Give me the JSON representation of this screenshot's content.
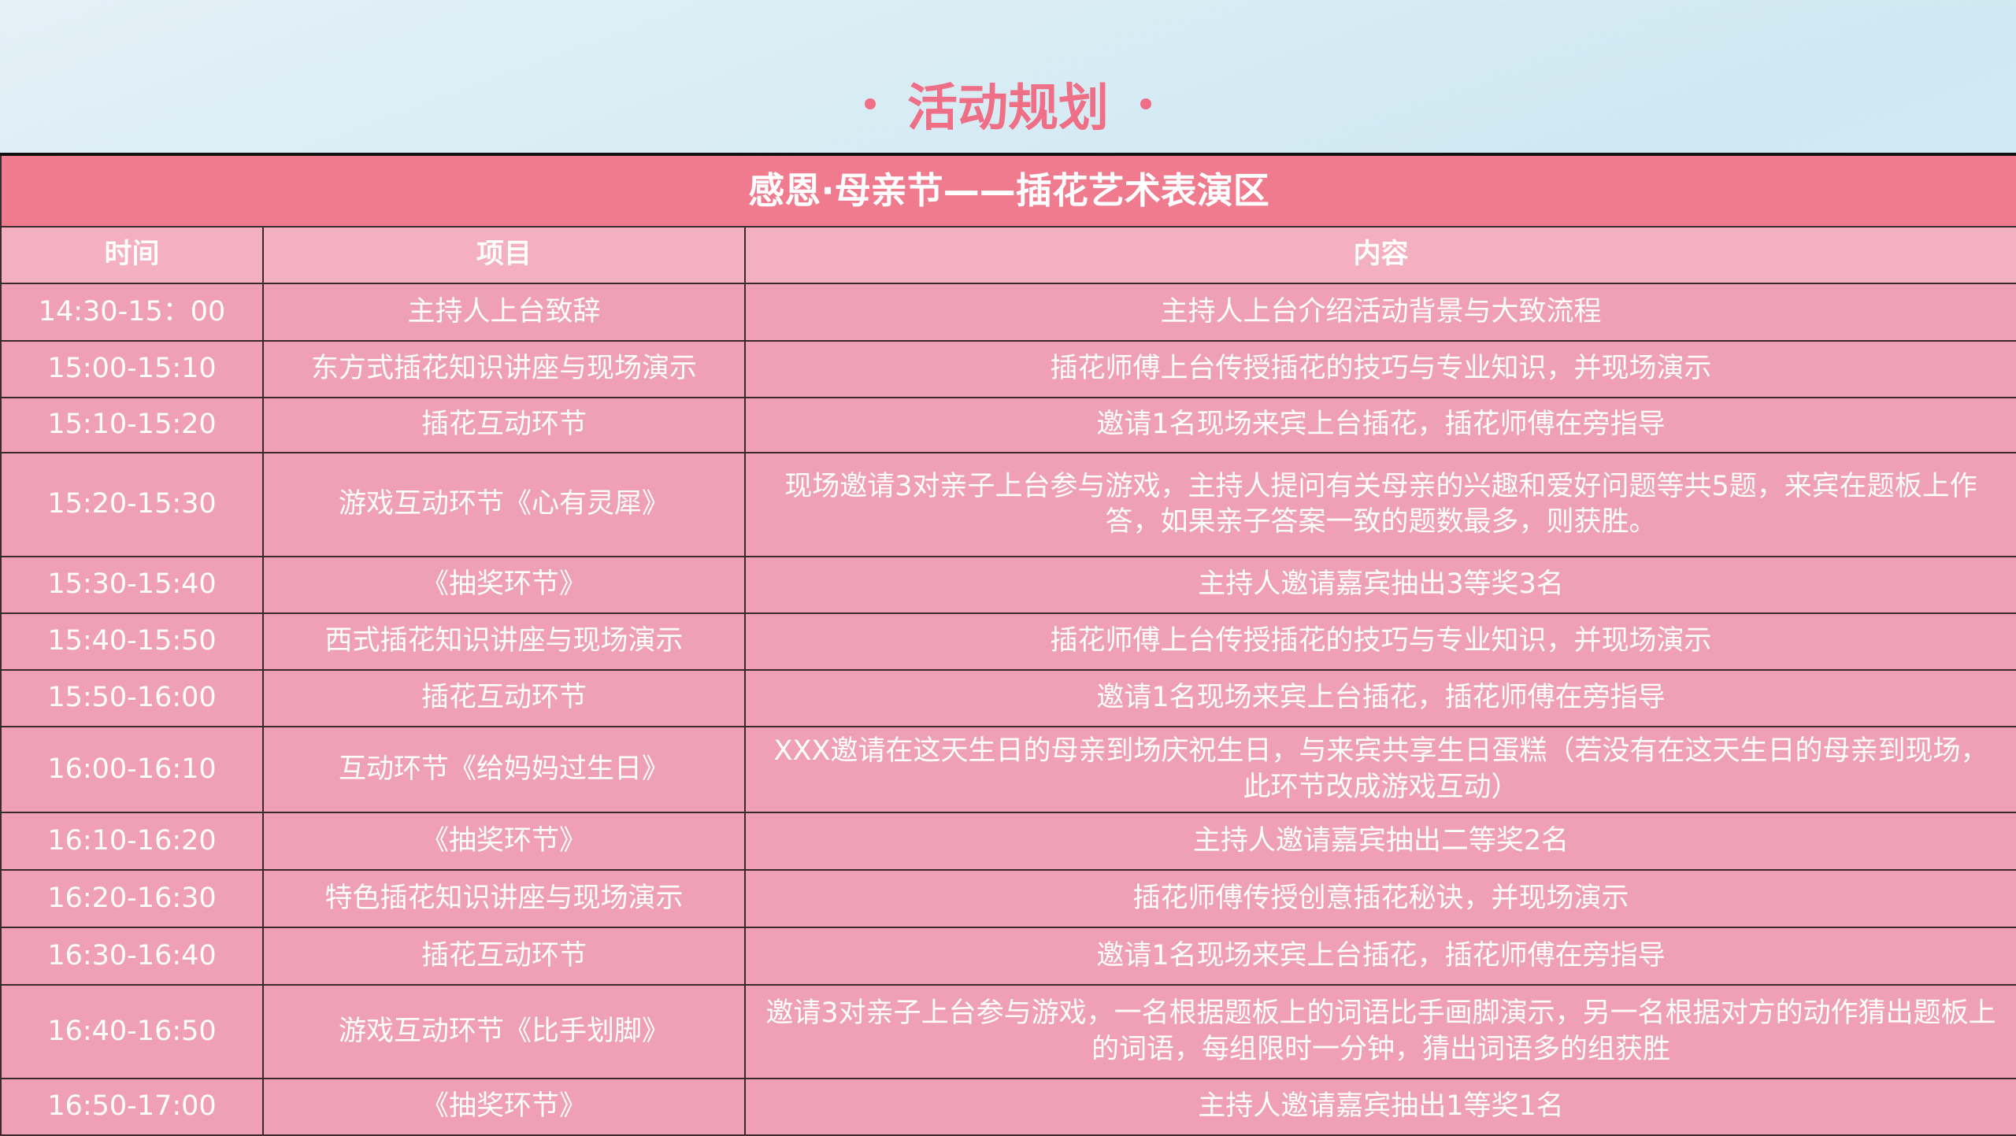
{
  "title": "活动规划",
  "table": {
    "title": "感恩·母亲节——插花艺术表演区",
    "headers": [
      "时间",
      "项目",
      "内容"
    ],
    "rows": [
      [
        "14:30-15：00",
        "主持人上台致辞",
        "主持人上台介绍活动背景与大致流程"
      ],
      [
        "15:00-15:10",
        "东方式插花知识讲座与现场演示",
        "插花师傅上台传授插花的技巧与专业知识，并现场演示"
      ],
      [
        "15:10-15:20",
        "插花互动环节",
        "邀请1名现场来宾上台插花，插花师傅在旁指导"
      ],
      [
        "15:20-15:30",
        "游戏互动环节《心有灵犀》",
        "现场邀请3对亲子上台参与游戏，主持人提问有关母亲的兴趣和爱好问题等共5题，来宾在题板上作答，如果亲子答案一致的题数最多，则获胜。"
      ],
      [
        "15:30-15:40",
        "《抽奖环节》",
        "主持人邀请嘉宾抽出3等奖3名"
      ],
      [
        "15:40-15:50",
        "西式插花知识讲座与现场演示",
        "插花师傅上台传授插花的技巧与专业知识，并现场演示"
      ],
      [
        "15:50-16:00",
        "插花互动环节",
        "邀请1名现场来宾上台插花，插花师傅在旁指导"
      ],
      [
        "16:00-16:10",
        "互动环节《给妈妈过生日》",
        "XXX邀请在这天生日的母亲到场庆祝生日，与来宾共享生日蛋糕（若没有在这天生日的母亲到现场，此环节改成游戏互动）"
      ],
      [
        "16:10-16:20",
        "《抽奖环节》",
        "主持人邀请嘉宾抽出二等奖2名"
      ],
      [
        "16:20-16:30",
        "特色插花知识讲座与现场演示",
        "插花师傅传授创意插花秘诀，并现场演示"
      ],
      [
        "16:30-16:40",
        "插花互动环节",
        "邀请1名现场来宾上台插花，插花师傅在旁指导"
      ],
      [
        "16:40-16:50",
        "游戏互动环节《比手划脚》",
        "邀请3对亲子上台参与游戏，一名根据题板上的词语比手画脚演示，另一名根据对方的动作猜出题板上的词语，每组限时一分钟，猜出词语多的组获胜"
      ],
      [
        "16:50-17:00",
        "《抽奖环节》",
        "主持人邀请嘉宾抽出1等奖1名"
      ]
    ]
  }
}
